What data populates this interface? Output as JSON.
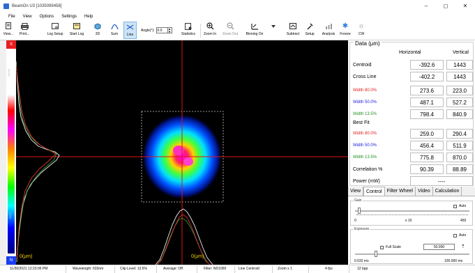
{
  "window": {
    "title": "BeamOn U3 [1035099458]",
    "minimize": "–",
    "maximize": "◻",
    "close": "✕"
  },
  "menu": [
    "File",
    "View",
    "Options",
    "Settings",
    "Help"
  ],
  "toolbar": {
    "view": "View...",
    "print": "Print...",
    "log_setup": "Log Setup",
    "start_log": "Start Log",
    "three_d": "3D",
    "sum": "Sum",
    "line": "Line",
    "angle_label": "Angle(°):",
    "angle_value": "0.0",
    "statistics": "Statistics",
    "zoom_in": "Zoom In",
    "zoom_out": "Zoom Out",
    "binning": "Binning On",
    "subtract": "Subtract",
    "setup": "Setup",
    "analysis": "Analysis",
    "freeze": "Freeze",
    "cw": "CW"
  },
  "image": {
    "left_axis_label": "0(µm)",
    "bottom_axis_label": "0(µm)",
    "marker_top": "X",
    "marker_bottom": "N",
    "scale_top": "16000",
    "scale_bottom": "6023",
    "colors": {
      "crosshair": "#e01414",
      "roi": "#cfcfcf",
      "profile_measured": "#f0f0f0",
      "profile_fit": "#e03030",
      "profile_alt": "#40c040"
    }
  },
  "data": {
    "title": "Data (µm)",
    "col_horizontal": "Horizontal",
    "col_vertical": "Vertical",
    "rows": [
      {
        "label": "Centroid",
        "h": "-392.6",
        "v": "1443",
        "color": "#000000"
      },
      {
        "label": "Cross Line",
        "h": "-402.2",
        "v": "1443",
        "color": "#000000"
      },
      {
        "label": "Width 80.0%",
        "h": "273.6",
        "v": "223.0",
        "color": "#e02020"
      },
      {
        "label": "Width 50.0%",
        "h": "487.1",
        "v": "527.2",
        "color": "#2020e0"
      },
      {
        "label": "Width 13.5%",
        "h": "798.4",
        "v": "840.9",
        "color": "#1f8f1f"
      }
    ],
    "best_fit_label": "Best Fit",
    "best_fit_rows": [
      {
        "label": "Width 80.0%",
        "h": "259.0",
        "v": "290.4",
        "color": "#e02020"
      },
      {
        "label": "Width 50.0%",
        "h": "456.4",
        "v": "511.9",
        "color": "#2020e0"
      },
      {
        "label": "Width 13.5%",
        "h": "775.8",
        "v": "870.0",
        "color": "#1f8f1f"
      }
    ],
    "correlation_label": "Correlation %",
    "correlation_h": "90.39",
    "correlation_v": "88.89",
    "power_label": "Power (mW)",
    "power_value": "----"
  },
  "tabs": [
    "View",
    "Control",
    "Filter Wheel",
    "Video",
    "Calculation"
  ],
  "control": {
    "gain_title": "Gain",
    "gain_auto": "Auto",
    "gain_min": "0",
    "gain_mult": "x 10",
    "gain_max": "450",
    "exposure_title": "Exposure",
    "exposure_auto": "Auto",
    "full_scale": "Full Scale",
    "exposure_value": "50.000",
    "exposure_min": "0.032 ms",
    "exposure_max": "100.000 ms"
  },
  "status": {
    "datetime": "11/30/2021 12:23:06 PM",
    "wavelength": "Wavelength: 633nm",
    "clip": "Clip Level: 13.5%",
    "average": "Average: Off",
    "filter": "Filter: ND1000",
    "mode": "Line Centroid",
    "zoom": "Zoom x 1",
    "fps": "4 fps",
    "bpp": "12 bpp"
  }
}
